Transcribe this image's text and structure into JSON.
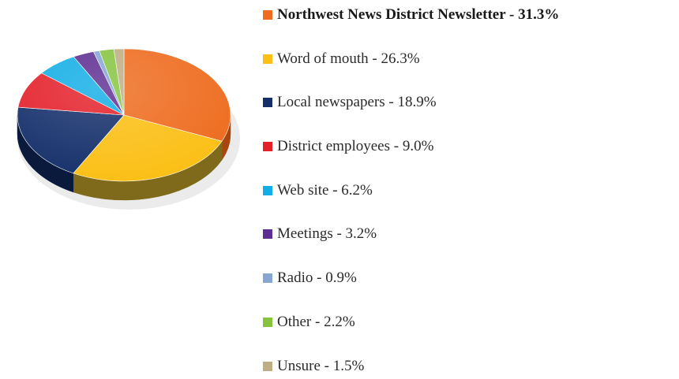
{
  "chart_data": {
    "type": "pie",
    "style": "3d",
    "legend_position": "right",
    "slices": [
      {
        "label": "Northwest News District Newsletter - 31.3%",
        "value": 31.3,
        "color": "#ee6c1f",
        "side_color": "#a8460e",
        "bold": true
      },
      {
        "label": "Word of mouth - 26.3%",
        "value": 26.3,
        "color": "#fbbf15",
        "side_color": "#7e6a1a",
        "bold": false
      },
      {
        "label": "Local newspapers - 18.9%",
        "value": 18.9,
        "color": "#142f6a",
        "side_color": "#0a1a3d",
        "bold": false
      },
      {
        "label": "District employees - 9.0%",
        "value": 9.0,
        "color": "#e4202a",
        "side_color": "#8f1218",
        "bold": false
      },
      {
        "label": "Web site - 6.2%",
        "value": 6.2,
        "color": "#13aee6",
        "side_color": "#0b6d90",
        "bold": false
      },
      {
        "label": "Meetings - 3.2%",
        "value": 3.2,
        "color": "#5e2e92",
        "side_color": "#3a1b5c",
        "bold": false
      },
      {
        "label": "Radio - 0.9%",
        "value": 0.9,
        "color": "#86a6d4",
        "side_color": "#556c8c",
        "bold": false
      },
      {
        "label": "Other - 2.2%",
        "value": 2.2,
        "color": "#86c440",
        "side_color": "#557d28",
        "bold": false
      },
      {
        "label": "Unsure - 1.5%",
        "value": 1.5,
        "color": "#bfae84",
        "side_color": "#7d7054",
        "bold": false
      }
    ]
  }
}
